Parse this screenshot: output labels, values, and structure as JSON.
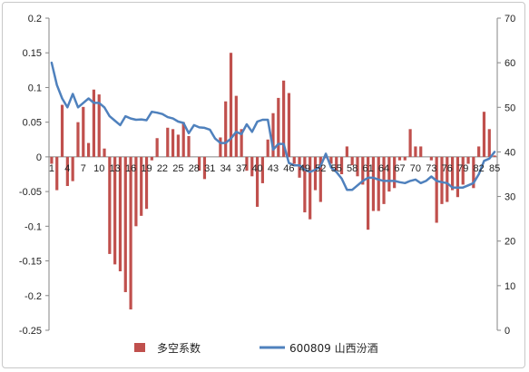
{
  "chart_data": {
    "type": "bar+line",
    "x": [
      1,
      2,
      3,
      4,
      5,
      6,
      7,
      8,
      9,
      10,
      11,
      12,
      13,
      14,
      15,
      16,
      17,
      18,
      19,
      20,
      21,
      22,
      23,
      24,
      25,
      26,
      27,
      28,
      29,
      30,
      31,
      32,
      33,
      34,
      35,
      36,
      37,
      38,
      39,
      40,
      41,
      42,
      43,
      44,
      45,
      46,
      47,
      48,
      49,
      50,
      51,
      52,
      53,
      54,
      55,
      56,
      57,
      58,
      59,
      60,
      61,
      62,
      63,
      64,
      65,
      66,
      67,
      68,
      69,
      70,
      71,
      72,
      73,
      74,
      75,
      76,
      77,
      78,
      79,
      80,
      81,
      82,
      83,
      84,
      85
    ],
    "x_tick_labels": [
      "1",
      "4",
      "7",
      "10",
      "13",
      "16",
      "19",
      "22",
      "25",
      "28",
      "31",
      "34",
      "37",
      "40",
      "43",
      "46",
      "49",
      "52",
      "55",
      "58",
      "61",
      "64",
      "67",
      "70",
      "73",
      "76",
      "79",
      "82",
      "85"
    ],
    "left_axis": {
      "ylim": [
        -0.25,
        0.2
      ],
      "ticks": [
        "0.2",
        "0.15",
        "0.1",
        "0.05",
        "0",
        "-0.05",
        "-0.1",
        "-0.15",
        "-0.2",
        "-0.25"
      ]
    },
    "right_axis": {
      "ylim": [
        0,
        70
      ],
      "ticks": [
        "70",
        "60",
        "50",
        "40",
        "30",
        "20",
        "10",
        "0"
      ]
    },
    "series": [
      {
        "name": "多空系数",
        "type": "bar",
        "axis": "left",
        "color": "#c0504d",
        "values": [
          -0.01,
          -0.048,
          0.075,
          -0.042,
          -0.035,
          0.05,
          0.072,
          0.02,
          0.097,
          0.09,
          0.012,
          -0.14,
          -0.155,
          -0.165,
          -0.195,
          -0.22,
          -0.1,
          -0.085,
          -0.075,
          -0.005,
          0.027,
          0.0,
          0.042,
          0.04,
          0.032,
          0.05,
          0.03,
          0.0,
          -0.02,
          -0.032,
          0.0,
          0.0,
          0.028,
          0.08,
          0.15,
          0.088,
          0.04,
          -0.02,
          -0.028,
          -0.072,
          -0.038,
          0.025,
          0.063,
          0.085,
          0.11,
          0.092,
          -0.01,
          -0.03,
          -0.08,
          -0.09,
          -0.048,
          -0.065,
          -0.002,
          -0.01,
          -0.02,
          -0.025,
          0.015,
          -0.012,
          -0.028,
          -0.04,
          -0.105,
          -0.078,
          -0.078,
          -0.068,
          -0.05,
          -0.045,
          -0.005,
          -0.005,
          0.04,
          0.015,
          0.015,
          0.0,
          -0.005,
          -0.095,
          -0.068,
          -0.065,
          -0.048,
          -0.058,
          -0.04,
          -0.01,
          -0.045,
          0.015,
          0.065,
          0.04,
          0.002
        ]
      },
      {
        "name": "600809 山西汾酒",
        "type": "line",
        "axis": "right",
        "color": "#4f81bd",
        "values": [
          60,
          55,
          52,
          50,
          53,
          50,
          51,
          52,
          51,
          51,
          50,
          48,
          47,
          46,
          48,
          47.5,
          47.2,
          47.3,
          47.1,
          49,
          48.8,
          48.5,
          47.8,
          47.5,
          46.8,
          46.5,
          44.2,
          46,
          45.5,
          45.4,
          45,
          43,
          42,
          42,
          43,
          44.5,
          44,
          46.2,
          44.5,
          46.8,
          47.2,
          47.2,
          40.5,
          41.8,
          41.8,
          37.5,
          37,
          37,
          36,
          35.5,
          36,
          36.8,
          39.6,
          36.5,
          35.5,
          34,
          31.5,
          31.5,
          32.5,
          33.5,
          34.2,
          34.2,
          33.8,
          33.5,
          33.5,
          33.5,
          33.2,
          33,
          33.5,
          33.8,
          33,
          33.5,
          34.5,
          33.5,
          33.2,
          33,
          32,
          32,
          32,
          32.5,
          33,
          35,
          38,
          38.5,
          40
        ]
      }
    ],
    "legend_placement": "bottom",
    "grid": false
  }
}
